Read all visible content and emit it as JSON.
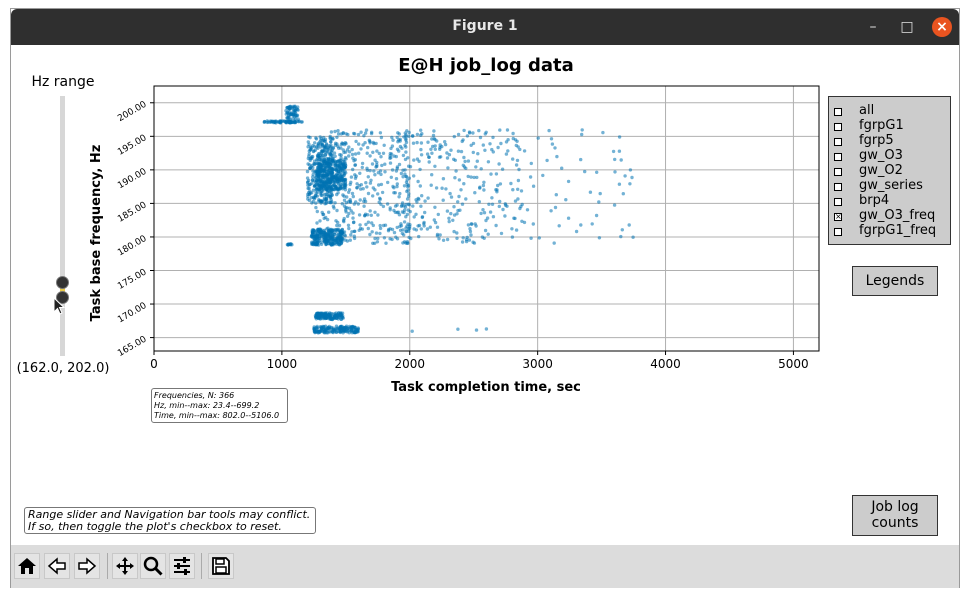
{
  "window": {
    "title": "Figure 1",
    "minimize": "–",
    "maximize": "□",
    "close": "×"
  },
  "slider": {
    "title": "Hz range",
    "value_text": "(162.0, 202.0)",
    "low": 162.0,
    "high": 202.0,
    "min": 162.0,
    "max": 202.0,
    "knob_low_value": 169.6,
    "knob_high_value": 172.0
  },
  "checks": [
    {
      "label": "all",
      "checked": false
    },
    {
      "label": "fgrpG1",
      "checked": false
    },
    {
      "label": "fgrp5",
      "checked": false
    },
    {
      "label": "gw_O3",
      "checked": false
    },
    {
      "label": "gw_O2",
      "checked": false
    },
    {
      "label": "gw_series",
      "checked": false
    },
    {
      "label": "brp4",
      "checked": false
    },
    {
      "label": "gw_O3_freq",
      "checked": true
    },
    {
      "label": "fgrpG1_freq",
      "checked": false
    }
  ],
  "buttons": {
    "legends": "Legends",
    "job_log_line1": "Job log",
    "job_log_line2": "counts"
  },
  "stats": {
    "line1": "Frequencies, N: 366",
    "line2": "Hz, min--max: 23.4--699.2",
    "line3": "Time, min--max: 802.0--5106.0"
  },
  "warning": {
    "line1": "Range slider and Navigation bar tools may conflict.",
    "line2": "If so, then toggle the plot's checkbox to reset."
  },
  "toolbar": [
    "home-icon",
    "back-icon",
    "forward-icon",
    "pan-icon",
    "zoom-icon",
    "configure-icon",
    "save-icon"
  ],
  "colors": {
    "point": "#0072B2",
    "grid": "#b0b0b0"
  },
  "chart_data": {
    "type": "scatter",
    "title": "E@H job_log data",
    "xlabel": "Task completion time, sec",
    "ylabel": "Task base frequency, Hz",
    "xlim": [
      0,
      5200
    ],
    "ylim": [
      163,
      202.5
    ],
    "xticks": [
      0,
      1000,
      2000,
      3000,
      4000,
      5000
    ],
    "xtick_labels": [
      "0",
      "1000",
      "2000",
      "3000",
      "4000",
      "5000"
    ],
    "yticks": [
      165,
      170,
      175,
      180,
      185,
      190,
      195,
      200
    ],
    "ytick_labels": [
      "165.00",
      "170.00",
      "175.00",
      "180.00",
      "185.00",
      "190.00",
      "195.00",
      "200.00"
    ],
    "grid": true,
    "series": [
      {
        "name": "gw_O3_freq",
        "clusters": [
          {
            "x": [
              860,
              1160
            ],
            "y": [
              197.0,
              197.3
            ],
            "n": 70
          },
          {
            "x": [
              1030,
              1130
            ],
            "y": [
              197.5,
              199.5
            ],
            "n": 60
          },
          {
            "x": [
              1040,
              1090
            ],
            "y": [
              178.8,
              179.0
            ],
            "n": 10
          },
          {
            "x": [
              1200,
              1400
            ],
            "y": [
              185.0,
              195.0
            ],
            "n": 260
          },
          {
            "x": [
              1230,
              1480
            ],
            "y": [
              178.8,
              181.2
            ],
            "n": 260
          },
          {
            "x": [
              1270,
              1500
            ],
            "y": [
              187.0,
              191.5
            ],
            "n": 320
          },
          {
            "x": [
              1250,
              1580
            ],
            "y": [
              179.0,
              194.0
            ],
            "n": 120
          },
          {
            "x": [
              1300,
              2000
            ],
            "y": [
              179.0,
              196.0
            ],
            "n": 340
          },
          {
            "x": [
              1900,
              2900
            ],
            "y": [
              179.0,
              196.0
            ],
            "n": 280
          },
          {
            "x": [
              2900,
              3750
            ],
            "y": [
              179.0,
              196.0
            ],
            "n": 55
          },
          {
            "x": [
              1260,
              1480
            ],
            "y": [
              167.7,
              168.7
            ],
            "n": 140
          },
          {
            "x": [
              1250,
              1600
            ],
            "y": [
              165.7,
              166.7
            ],
            "n": 170
          },
          {
            "x": [
              1850,
              2600
            ],
            "y": [
              165.9,
              166.3
            ],
            "n": 4
          }
        ]
      }
    ]
  }
}
